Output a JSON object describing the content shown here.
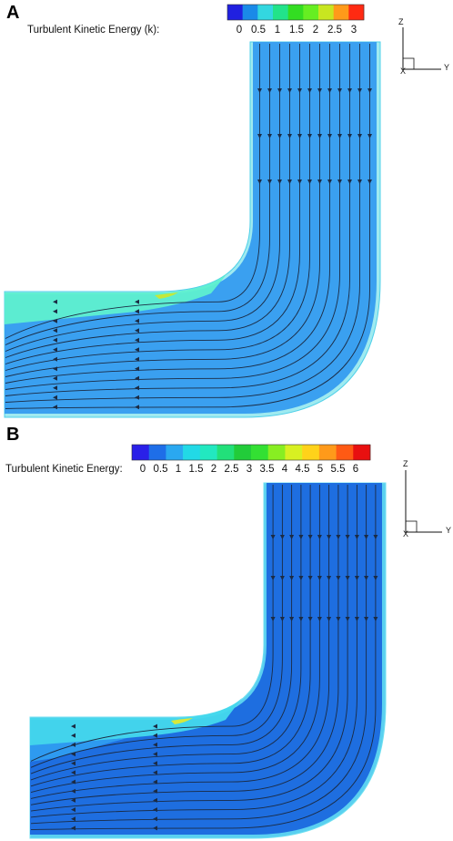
{
  "panels": [
    {
      "label": "A",
      "legend_title": "Turbulent Kinetic Energy (k):",
      "ticks": [
        "0",
        "0.5",
        "1",
        "1.5",
        "2",
        "2.5",
        "3"
      ],
      "colorbar": [
        "#2020e0",
        "#1a8ae8",
        "#33d7e0",
        "#22e38a",
        "#33dd22",
        "#66ee22",
        "#c8e620",
        "#ff9a1a",
        "#ff2a12"
      ],
      "field_color": "#3aa0f0",
      "axes": {
        "z": "Z",
        "y": "Y",
        "x": "X"
      }
    },
    {
      "label": "B",
      "legend_title": "Turbulent Kinetic Energy:",
      "ticks": [
        "0",
        "0.5",
        "1",
        "1.5",
        "2",
        "2.5",
        "3",
        "3.5",
        "4",
        "4.5",
        "5",
        "5.5",
        "6"
      ],
      "colorbar": [
        "#2a20e8",
        "#1e6ee8",
        "#2aa8f0",
        "#22d9e6",
        "#22e8c0",
        "#22e07a",
        "#22cc3a",
        "#33e033",
        "#88ee22",
        "#d8f022",
        "#ffd21a",
        "#ff9a1a",
        "#ff5a14",
        "#e81010"
      ],
      "field_color": "#1e6ee0",
      "axes": {
        "z": "Z",
        "y": "Y",
        "x": "X"
      }
    }
  ]
}
